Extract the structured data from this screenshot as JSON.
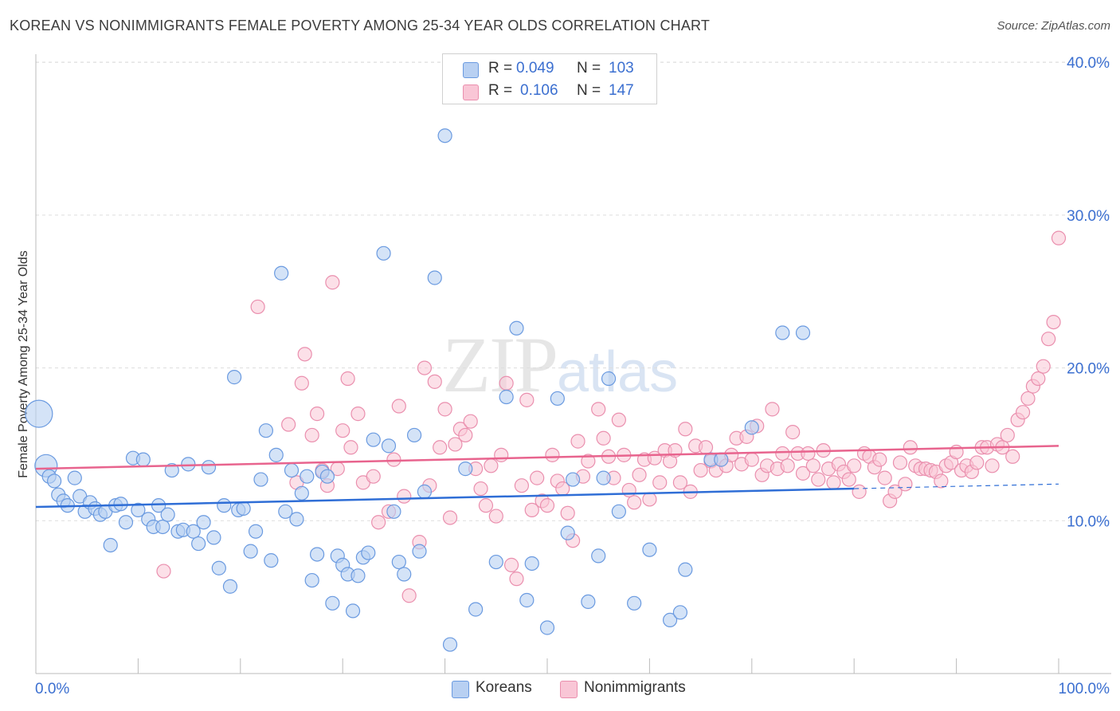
{
  "title": "KOREAN VS NONIMMIGRANTS FEMALE POVERTY AMONG 25-34 YEAR OLDS CORRELATION CHART",
  "source": "Source: ZipAtlas.com",
  "watermark": {
    "zip": "ZIP",
    "atlas": "atlas"
  },
  "legend": {
    "koreans": {
      "r_label": "R =",
      "r_value": "0.049",
      "n_label": "N =",
      "n_value": "103"
    },
    "nonimmigrants": {
      "r_label": "R =",
      "r_value": "0.106",
      "n_label": "N =",
      "n_value": "147"
    }
  },
  "bottom_legend": {
    "koreans": "Koreans",
    "nonimmigrants": "Nonimmigrants"
  },
  "colors": {
    "koreans_fill": "#b8d0f2",
    "koreans_stroke": "#6a9ae0",
    "koreans_line": "#2f6ed6",
    "nonimm_fill": "#f9c6d6",
    "nonimm_stroke": "#ea8fae",
    "nonimm_line": "#e8648e",
    "grid": "#dddddd",
    "tick_text": "#3b6fd0"
  },
  "chart_data": {
    "type": "scatter",
    "title": "KOREAN VS NONIMMIGRANTS FEMALE POVERTY AMONG 25-34 YEAR OLDS CORRELATION CHART",
    "xlabel": "",
    "ylabel": "Female Poverty Among 25-34 Year Olds",
    "xlim": [
      0,
      100
    ],
    "ylim": [
      0,
      41
    ],
    "x_tick_labels": [
      "0.0%",
      "100.0%"
    ],
    "y_ticks": [
      10,
      20,
      30,
      40
    ],
    "y_tick_labels": [
      "10.0%",
      "20.0%",
      "30.0%",
      "40.0%"
    ],
    "grid": true,
    "series": [
      {
        "name": "Koreans",
        "trend": {
          "x": [
            0,
            80
          ],
          "y": [
            10.9,
            12.1
          ],
          "dashed_extension_to": [
            100,
            12.4
          ]
        },
        "points": [
          [
            0.3,
            17.0
          ],
          [
            1.0,
            13.6
          ],
          [
            1.3,
            12.9
          ],
          [
            1.8,
            12.6
          ],
          [
            2.2,
            11.7
          ],
          [
            2.7,
            11.3
          ],
          [
            3.1,
            11.0
          ],
          [
            3.8,
            12.8
          ],
          [
            4.3,
            11.6
          ],
          [
            4.8,
            10.6
          ],
          [
            5.3,
            11.2
          ],
          [
            5.8,
            10.8
          ],
          [
            6.3,
            10.4
          ],
          [
            6.8,
            10.6
          ],
          [
            7.3,
            8.4
          ],
          [
            7.8,
            11.0
          ],
          [
            8.3,
            11.1
          ],
          [
            8.8,
            9.9
          ],
          [
            9.5,
            14.1
          ],
          [
            10.0,
            10.7
          ],
          [
            10.5,
            14.0
          ],
          [
            11.0,
            10.1
          ],
          [
            11.5,
            9.6
          ],
          [
            12.0,
            11.0
          ],
          [
            12.4,
            9.6
          ],
          [
            12.9,
            10.4
          ],
          [
            13.3,
            13.3
          ],
          [
            13.9,
            9.3
          ],
          [
            14.4,
            9.4
          ],
          [
            14.9,
            13.7
          ],
          [
            15.4,
            9.3
          ],
          [
            15.9,
            8.5
          ],
          [
            16.4,
            9.9
          ],
          [
            16.9,
            13.5
          ],
          [
            17.4,
            8.9
          ],
          [
            17.9,
            6.9
          ],
          [
            18.4,
            11.0
          ],
          [
            19.0,
            5.7
          ],
          [
            19.4,
            19.4
          ],
          [
            19.8,
            10.7
          ],
          [
            20.3,
            10.8
          ],
          [
            21.0,
            8.0
          ],
          [
            21.5,
            9.3
          ],
          [
            22.0,
            12.7
          ],
          [
            22.5,
            15.9
          ],
          [
            23.0,
            7.4
          ],
          [
            23.5,
            14.3
          ],
          [
            24.0,
            26.2
          ],
          [
            24.4,
            10.6
          ],
          [
            25.0,
            13.3
          ],
          [
            25.5,
            10.1
          ],
          [
            26.0,
            11.8
          ],
          [
            26.5,
            12.9
          ],
          [
            27.0,
            6.1
          ],
          [
            27.5,
            7.8
          ],
          [
            28.0,
            13.2
          ],
          [
            28.5,
            12.9
          ],
          [
            29.0,
            4.6
          ],
          [
            29.5,
            7.7
          ],
          [
            30.0,
            7.1
          ],
          [
            30.5,
            6.5
          ],
          [
            31.0,
            4.1
          ],
          [
            31.5,
            6.4
          ],
          [
            32.0,
            7.6
          ],
          [
            32.5,
            7.9
          ],
          [
            33.0,
            15.3
          ],
          [
            34.0,
            27.5
          ],
          [
            34.5,
            14.9
          ],
          [
            35.0,
            10.6
          ],
          [
            35.5,
            7.3
          ],
          [
            36.0,
            6.5
          ],
          [
            37.0,
            15.6
          ],
          [
            37.5,
            8.0
          ],
          [
            38.0,
            11.9
          ],
          [
            39.0,
            25.9
          ],
          [
            40.0,
            35.2
          ],
          [
            40.5,
            1.9
          ],
          [
            42.0,
            13.4
          ],
          [
            43.0,
            4.2
          ],
          [
            45.0,
            7.3
          ],
          [
            46.0,
            18.1
          ],
          [
            47.0,
            22.6
          ],
          [
            48.0,
            4.8
          ],
          [
            48.5,
            7.2
          ],
          [
            50.0,
            3.0
          ],
          [
            51.0,
            18.0
          ],
          [
            52.0,
            9.2
          ],
          [
            52.5,
            12.7
          ],
          [
            54.0,
            4.7
          ],
          [
            55.0,
            7.7
          ],
          [
            55.5,
            12.8
          ],
          [
            56.0,
            19.3
          ],
          [
            57.0,
            10.6
          ],
          [
            58.5,
            4.6
          ],
          [
            60.0,
            8.1
          ],
          [
            62.0,
            3.5
          ],
          [
            63.0,
            4.0
          ],
          [
            63.5,
            6.8
          ],
          [
            66.0,
            14.0
          ],
          [
            70.0,
            16.1
          ],
          [
            73.0,
            22.3
          ],
          [
            75.0,
            22.3
          ],
          [
            67.0,
            14.0
          ]
        ]
      },
      {
        "name": "Nonimmigrants",
        "trend": {
          "x": [
            0,
            100
          ],
          "y": [
            13.4,
            14.9
          ]
        },
        "points": [
          [
            12.5,
            6.7
          ],
          [
            21.7,
            24.0
          ],
          [
            24.7,
            16.3
          ],
          [
            25.5,
            12.5
          ],
          [
            26.0,
            19.0
          ],
          [
            26.3,
            20.9
          ],
          [
            27.0,
            15.6
          ],
          [
            27.5,
            17.0
          ],
          [
            28.0,
            13.3
          ],
          [
            28.5,
            12.3
          ],
          [
            29.0,
            25.6
          ],
          [
            29.5,
            13.4
          ],
          [
            30.0,
            15.9
          ],
          [
            30.5,
            19.3
          ],
          [
            30.8,
            14.8
          ],
          [
            31.5,
            17.0
          ],
          [
            32.0,
            12.5
          ],
          [
            33.0,
            12.9
          ],
          [
            33.5,
            9.9
          ],
          [
            34.5,
            10.6
          ],
          [
            35.0,
            14.0
          ],
          [
            35.5,
            17.5
          ],
          [
            36.0,
            11.6
          ],
          [
            36.5,
            5.1
          ],
          [
            37.5,
            8.6
          ],
          [
            38.0,
            20.0
          ],
          [
            38.5,
            12.3
          ],
          [
            39.0,
            19.1
          ],
          [
            39.5,
            14.8
          ],
          [
            40.0,
            17.3
          ],
          [
            40.5,
            10.2
          ],
          [
            41.0,
            15.0
          ],
          [
            41.5,
            16.0
          ],
          [
            42.0,
            15.6
          ],
          [
            42.5,
            16.5
          ],
          [
            43.0,
            13.4
          ],
          [
            43.5,
            12.1
          ],
          [
            44.0,
            11.0
          ],
          [
            44.5,
            13.6
          ],
          [
            45.0,
            10.3
          ],
          [
            45.5,
            14.3
          ],
          [
            46.0,
            19.0
          ],
          [
            46.5,
            7.1
          ],
          [
            47.0,
            6.2
          ],
          [
            47.5,
            12.3
          ],
          [
            48.0,
            17.9
          ],
          [
            48.5,
            10.7
          ],
          [
            49.0,
            12.8
          ],
          [
            49.5,
            11.3
          ],
          [
            50.0,
            11.0
          ],
          [
            50.5,
            14.3
          ],
          [
            51.0,
            12.6
          ],
          [
            51.5,
            12.1
          ],
          [
            52.0,
            10.5
          ],
          [
            52.5,
            8.7
          ],
          [
            53.0,
            15.2
          ],
          [
            53.5,
            12.9
          ],
          [
            54.0,
            13.9
          ],
          [
            55.0,
            17.3
          ],
          [
            55.5,
            15.4
          ],
          [
            56.0,
            14.2
          ],
          [
            56.5,
            12.8
          ],
          [
            57.0,
            16.6
          ],
          [
            57.5,
            14.3
          ],
          [
            58.0,
            12.0
          ],
          [
            58.5,
            11.2
          ],
          [
            59.0,
            13.0
          ],
          [
            59.5,
            14.0
          ],
          [
            60.0,
            11.4
          ],
          [
            60.5,
            14.1
          ],
          [
            61.0,
            12.5
          ],
          [
            61.5,
            14.6
          ],
          [
            62.0,
            13.9
          ],
          [
            62.5,
            14.6
          ],
          [
            63.0,
            12.5
          ],
          [
            63.5,
            16.0
          ],
          [
            64.0,
            11.9
          ],
          [
            64.5,
            14.9
          ],
          [
            65.0,
            13.3
          ],
          [
            65.5,
            14.8
          ],
          [
            66.0,
            13.9
          ],
          [
            66.5,
            13.3
          ],
          [
            67.0,
            14.0
          ],
          [
            67.5,
            13.6
          ],
          [
            68.0,
            14.3
          ],
          [
            68.5,
            15.4
          ],
          [
            69.0,
            13.7
          ],
          [
            69.5,
            15.5
          ],
          [
            70.0,
            14.0
          ],
          [
            70.5,
            16.2
          ],
          [
            71.0,
            13.0
          ],
          [
            71.5,
            13.6
          ],
          [
            72.0,
            17.3
          ],
          [
            72.5,
            13.4
          ],
          [
            73.0,
            14.4
          ],
          [
            73.5,
            13.6
          ],
          [
            74.0,
            15.8
          ],
          [
            74.5,
            14.4
          ],
          [
            75.0,
            13.1
          ],
          [
            75.5,
            14.4
          ],
          [
            76.0,
            13.6
          ],
          [
            76.5,
            12.7
          ],
          [
            77.0,
            14.6
          ],
          [
            77.5,
            13.4
          ],
          [
            78.0,
            12.5
          ],
          [
            78.5,
            13.7
          ],
          [
            79.0,
            13.2
          ],
          [
            79.5,
            12.7
          ],
          [
            80.0,
            13.6
          ],
          [
            80.5,
            11.9
          ],
          [
            81.0,
            14.4
          ],
          [
            81.5,
            14.2
          ],
          [
            82.0,
            13.5
          ],
          [
            82.5,
            14.0
          ],
          [
            83.0,
            12.8
          ],
          [
            83.5,
            11.3
          ],
          [
            84.0,
            11.9
          ],
          [
            84.5,
            13.8
          ],
          [
            85.0,
            12.4
          ],
          [
            85.5,
            14.8
          ],
          [
            86.0,
            13.6
          ],
          [
            86.5,
            13.4
          ],
          [
            87.0,
            13.4
          ],
          [
            87.5,
            13.3
          ],
          [
            88.0,
            13.2
          ],
          [
            88.5,
            12.6
          ],
          [
            89.0,
            13.6
          ],
          [
            89.5,
            13.8
          ],
          [
            90.0,
            14.5
          ],
          [
            90.5,
            13.3
          ],
          [
            91.0,
            13.6
          ],
          [
            91.5,
            13.2
          ],
          [
            92.0,
            13.8
          ],
          [
            92.5,
            14.8
          ],
          [
            93.0,
            14.8
          ],
          [
            93.5,
            13.6
          ],
          [
            94.0,
            15.0
          ],
          [
            94.5,
            14.8
          ],
          [
            95.0,
            15.6
          ],
          [
            95.5,
            14.2
          ],
          [
            96.0,
            16.6
          ],
          [
            96.5,
            17.1
          ],
          [
            97.0,
            18.0
          ],
          [
            97.5,
            18.8
          ],
          [
            98.0,
            19.3
          ],
          [
            98.5,
            20.1
          ],
          [
            99.0,
            21.9
          ],
          [
            99.5,
            23.0
          ],
          [
            100.0,
            28.5
          ]
        ]
      }
    ]
  }
}
